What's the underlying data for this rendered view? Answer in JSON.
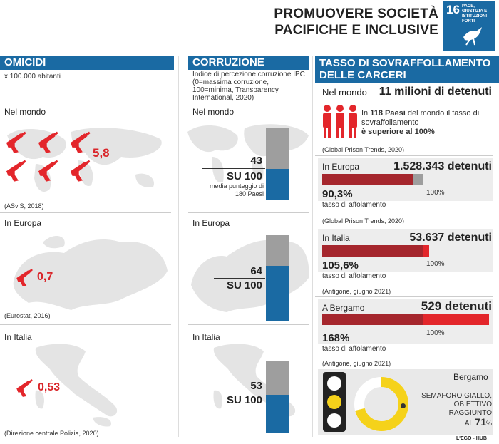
{
  "header": {
    "title_line1": "PROMUOVERE SOCIETÀ",
    "title_line2": "PACIFICHE E INCLUSIVE",
    "sdg_number": "16",
    "sdg_text": "PACE, GIUSTIZIA E ISTITUZIONI FORTI"
  },
  "omicidi": {
    "title": "OMICIDI",
    "subtitle": "x 100.000 abitanti",
    "world_label": "Nel mondo",
    "world_value": "5,8",
    "world_source": "(ASviS, 2018)",
    "europe_label": "In Europa",
    "europe_value": "0,7",
    "europe_source": "(Eurostat, 2016)",
    "italy_label": "In Italia",
    "italy_value": "0,53",
    "italy_source": "(Direzione centrale Polizia, 2020)"
  },
  "corruzione": {
    "title": "CORRUZIONE",
    "subtitle": "Indice di percezione corruzione IPC (0=massima corruzione, 100=minima, Transparency International, 2020)",
    "world_label": "Nel mondo",
    "world_value": "43",
    "world_fraction": 0.43,
    "su100": "SU 100",
    "world_note": "media punteggio di 180 Paesi",
    "europe_label": "In Europa",
    "europe_value": "64",
    "europe_fraction": 0.64,
    "italy_label": "In Italia",
    "italy_value": "53",
    "italy_fraction": 0.53
  },
  "carceri": {
    "title_line1": "TASSO DI SOVRAFFOLLAMENTO",
    "title_line2": "DELLE CARCERI",
    "world_label": "Nel mondo",
    "world_value": "11 milioni di detenuti",
    "world_text_bold": "118 Paesi",
    "world_text_pre": "In ",
    "world_text_mid": " del mondo il tasso di sovraffollamento",
    "world_text_end": "è superiore al 100%",
    "world_source": "(Global Prison Trends, 2020)",
    "europe_label": "In Europa",
    "europe_value": "1.528.343 detenuti",
    "europe_pct": "90,3%",
    "europe_rate": 0.903,
    "europe_sub": "tasso di affolamento",
    "europe_source": "(Global Prison Trends, 2020)",
    "italy_label": "In Italia",
    "italy_value": "53.637 detenuti",
    "italy_pct": "105,6%",
    "italy_rate": 1.056,
    "italy_sub": "tasso di affolamento",
    "italy_source": "(Antigone, giugno 2021)",
    "bergamo_label": "A Bergamo",
    "bergamo_value": "529 detenuti",
    "bergamo_pct": "168%",
    "bergamo_rate": 1.68,
    "bergamo_sub": "tasso di affolamento",
    "bergamo_source": "(Antigone, giugno 2021)",
    "hundred": "100%",
    "semaforo_city": "Bergamo",
    "semaforo_line1": "SEMAFORO GIALLO,",
    "semaforo_line2": "OBIETTIVO RAGGIUNTO",
    "semaforo_al": "AL",
    "semaforo_pct": "71",
    "semaforo_pct_sign": "%",
    "semaforo_fraction": 0.71
  },
  "footer": {
    "credit": "L'EGO - HUB"
  },
  "colors": {
    "blue": "#1a6aa3",
    "red": "#e3262b",
    "dark_red": "#a5262d",
    "grey": "#9e9e9e",
    "yellow": "#f5d21a"
  }
}
